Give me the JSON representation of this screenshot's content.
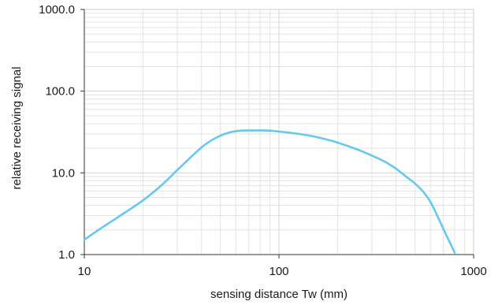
{
  "chart_data": {
    "type": "line",
    "xlabel": "sensing distance Tw (mm)",
    "ylabel": "relative receiving signal",
    "x_scale": "log",
    "y_scale": "log",
    "xlim": [
      10,
      1000
    ],
    "ylim": [
      1,
      1000
    ],
    "x_ticks": [
      {
        "value": 10,
        "label": "10"
      },
      {
        "value": 100,
        "label": "100"
      },
      {
        "value": 1000,
        "label": "1000"
      }
    ],
    "y_ticks": [
      {
        "value": 1,
        "label": "1.0"
      },
      {
        "value": 10,
        "label": "10.0"
      },
      {
        "value": 100,
        "label": "100.0"
      },
      {
        "value": 1000,
        "label": "1000.0"
      }
    ],
    "grid": true,
    "series": [
      {
        "color": "#66c8ec",
        "points": [
          [
            10,
            1.52
          ],
          [
            12,
            2.05
          ],
          [
            15,
            2.9
          ],
          [
            20,
            4.6
          ],
          [
            25,
            7.1
          ],
          [
            30,
            10.8
          ],
          [
            35,
            15.3
          ],
          [
            40,
            20.5
          ],
          [
            45,
            25.0
          ],
          [
            50,
            28.5
          ],
          [
            55,
            31.0
          ],
          [
            60,
            32.4
          ],
          [
            65,
            32.9
          ],
          [
            70,
            33.0
          ],
          [
            80,
            33.1
          ],
          [
            90,
            32.8
          ],
          [
            100,
            32.0
          ],
          [
            120,
            30.5
          ],
          [
            150,
            28.0
          ],
          [
            180,
            25.2
          ],
          [
            200,
            23.5
          ],
          [
            250,
            19.5
          ],
          [
            300,
            16.3
          ],
          [
            350,
            13.7
          ],
          [
            400,
            11.2
          ],
          [
            450,
            9.0
          ],
          [
            500,
            7.4
          ],
          [
            550,
            5.9
          ],
          [
            600,
            4.4
          ],
          [
            650,
            3.0
          ],
          [
            700,
            2.05
          ],
          [
            750,
            1.45
          ],
          [
            800,
            1.05
          ]
        ]
      }
    ]
  }
}
